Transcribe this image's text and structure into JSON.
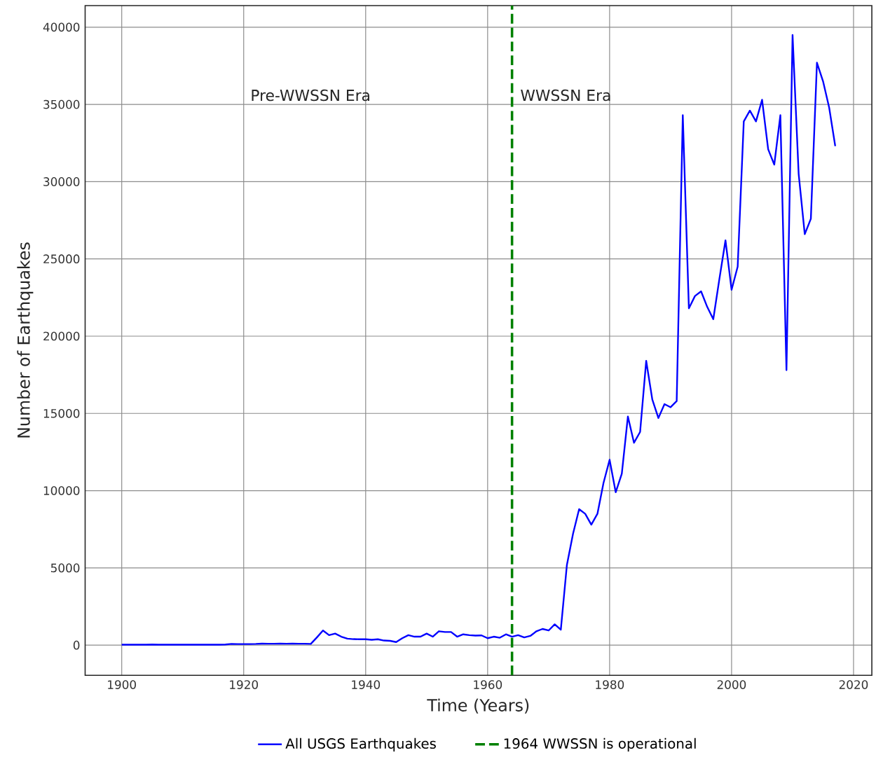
{
  "chart_data": {
    "type": "line",
    "xlabel": "Time (Years)",
    "ylabel": "Number of Earthquakes",
    "x": [
      1900,
      1901,
      1902,
      1903,
      1904,
      1905,
      1906,
      1907,
      1908,
      1909,
      1910,
      1911,
      1912,
      1913,
      1914,
      1915,
      1916,
      1917,
      1918,
      1919,
      1920,
      1921,
      1922,
      1923,
      1924,
      1925,
      1926,
      1927,
      1928,
      1929,
      1930,
      1931,
      1932,
      1933,
      1934,
      1935,
      1936,
      1937,
      1938,
      1939,
      1940,
      1941,
      1942,
      1943,
      1944,
      1945,
      1946,
      1947,
      1948,
      1949,
      1950,
      1951,
      1952,
      1953,
      1954,
      1955,
      1956,
      1957,
      1958,
      1959,
      1960,
      1961,
      1962,
      1963,
      1964,
      1965,
      1966,
      1967,
      1968,
      1969,
      1970,
      1971,
      1972,
      1973,
      1974,
      1975,
      1976,
      1977,
      1978,
      1979,
      1980,
      1981,
      1982,
      1983,
      1984,
      1985,
      1986,
      1987,
      1988,
      1989,
      1990,
      1991,
      1992,
      1993,
      1994,
      1995,
      1996,
      1997,
      1998,
      1999,
      2000,
      2001,
      2002,
      2003,
      2004,
      2005,
      2006,
      2007,
      2008,
      2009,
      2010,
      2011,
      2012,
      2013,
      2014,
      2015,
      2016,
      2017
    ],
    "series": [
      {
        "name": "All USGS Earthquakes",
        "color": "#0000ff",
        "values": [
          30,
          30,
          30,
          30,
          30,
          40,
          30,
          30,
          30,
          30,
          30,
          30,
          30,
          30,
          30,
          30,
          30,
          40,
          80,
          70,
          70,
          70,
          80,
          100,
          90,
          90,
          100,
          90,
          100,
          90,
          90,
          80,
          500,
          950,
          650,
          750,
          550,
          420,
          390,
          380,
          380,
          350,
          380,
          300,
          280,
          200,
          450,
          650,
          550,
          550,
          750,
          550,
          900,
          850,
          850,
          550,
          700,
          650,
          620,
          630,
          450,
          550,
          480,
          700,
          550,
          650,
          500,
          600,
          900,
          1050,
          950,
          1350,
          1000,
          5200,
          7200,
          8800,
          8500,
          7800,
          8500,
          10500,
          12000,
          9900,
          11100,
          14800,
          13100,
          13800,
          18400,
          15900,
          14700,
          15600,
          15400,
          15800,
          34300,
          21800,
          22600,
          22900,
          21900,
          21100,
          23700,
          26200,
          23000,
          24500,
          33900,
          34600,
          33900,
          35300,
          32100,
          31100,
          34300,
          17800,
          39500,
          30500,
          26600,
          27600,
          37700,
          36500,
          34800,
          32300
        ]
      }
    ],
    "xlim": [
      1894,
      2023
    ],
    "ylim": [
      -1950,
      41400
    ],
    "xticks": [
      1900,
      1920,
      1940,
      1960,
      1980,
      2000,
      2020
    ],
    "yticks": [
      0,
      5000,
      10000,
      15000,
      20000,
      25000,
      30000,
      35000,
      40000
    ],
    "ref_lines": [
      {
        "axis": "x",
        "value": 1964,
        "label": "1964 WWSSN is operational",
        "color": "#008000",
        "line_style": "dashed"
      }
    ],
    "annotations": [
      "Pre-WWSSN Era",
      "WWSSN Era"
    ],
    "grid": true,
    "legend": "bottom",
    "line_style": "solid",
    "marker": "none"
  }
}
